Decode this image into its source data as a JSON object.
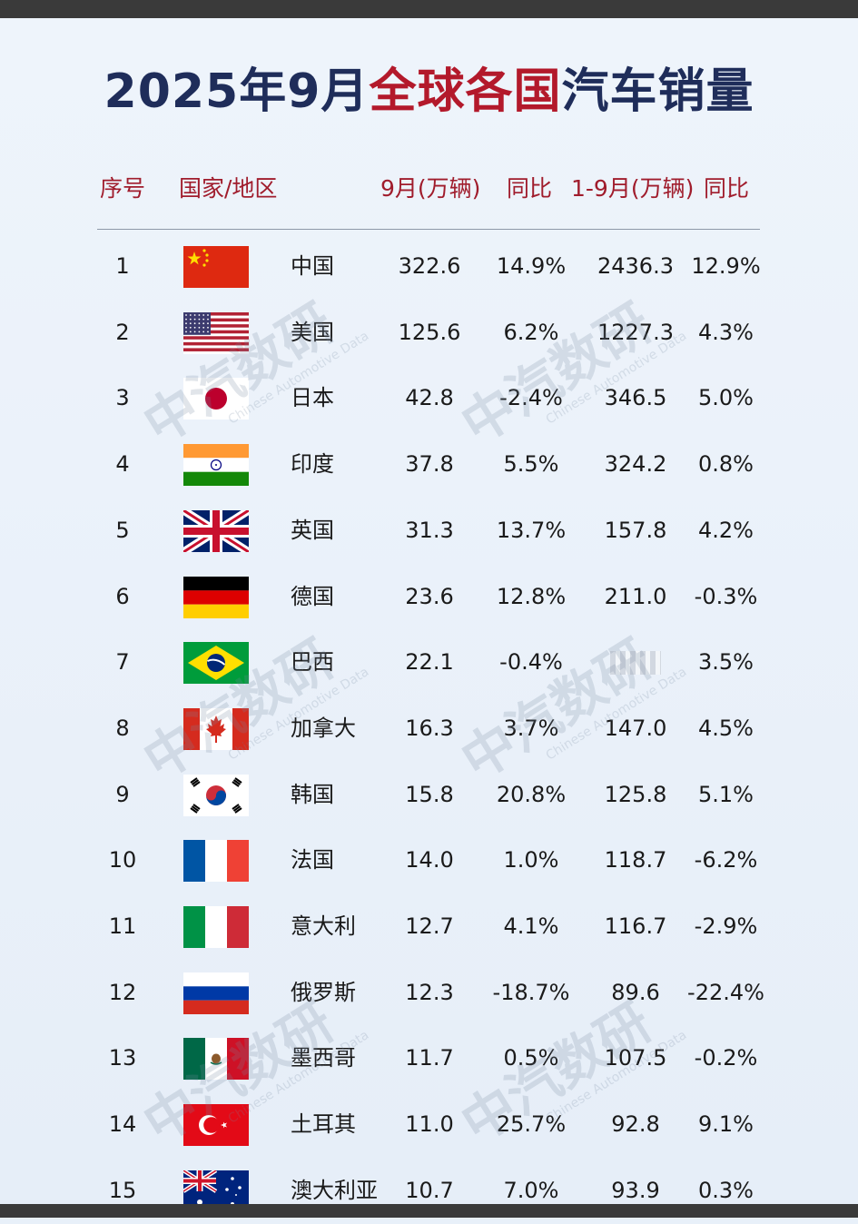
{
  "title": {
    "part1": "2025年9月",
    "part2": "全球各国",
    "part3": "汽车销量"
  },
  "headers": {
    "rank": "序号",
    "country": "国家/地区",
    "sep": "9月(万辆)",
    "yoy1": "同比",
    "ytd": "1-9月(万辆)",
    "yoy2": "同比"
  },
  "rows": [
    {
      "rank": "1",
      "name": "中国",
      "flag": "china-flag-icon",
      "sep": "322.6",
      "yoy1": "14.9%",
      "ytd": "2436.3",
      "yoy2": "12.9%"
    },
    {
      "rank": "2",
      "name": "美国",
      "flag": "usa-flag-icon",
      "sep": "125.6",
      "yoy1": "6.2%",
      "ytd": "1227.3",
      "yoy2": "4.3%"
    },
    {
      "rank": "3",
      "name": "日本",
      "flag": "japan-flag-icon",
      "sep": "42.8",
      "yoy1": "-2.4%",
      "ytd": "346.5",
      "yoy2": "5.0%"
    },
    {
      "rank": "4",
      "name": "印度",
      "flag": "india-flag-icon",
      "sep": "37.8",
      "yoy1": "5.5%",
      "ytd": "324.2",
      "yoy2": "0.8%"
    },
    {
      "rank": "5",
      "name": "英国",
      "flag": "uk-flag-icon",
      "sep": "31.3",
      "yoy1": "13.7%",
      "ytd": "157.8",
      "yoy2": "4.2%"
    },
    {
      "rank": "6",
      "name": "德国",
      "flag": "germany-flag-icon",
      "sep": "23.6",
      "yoy1": "12.8%",
      "ytd": "211.0",
      "yoy2": "-0.3%"
    },
    {
      "rank": "7",
      "name": "巴西",
      "flag": "brazil-flag-icon",
      "sep": "22.1",
      "yoy1": "-0.4%",
      "ytd": "",
      "yoy2": "3.5%"
    },
    {
      "rank": "8",
      "name": "加拿大",
      "flag": "canada-flag-icon",
      "sep": "16.3",
      "yoy1": "3.7%",
      "ytd": "147.0",
      "yoy2": "4.5%"
    },
    {
      "rank": "9",
      "name": "韩国",
      "flag": "korea-flag-icon",
      "sep": "15.8",
      "yoy1": "20.8%",
      "ytd": "125.8",
      "yoy2": "5.1%"
    },
    {
      "rank": "10",
      "name": "法国",
      "flag": "france-flag-icon",
      "sep": "14.0",
      "yoy1": "1.0%",
      "ytd": "118.7",
      "yoy2": "-6.2%"
    },
    {
      "rank": "11",
      "name": "意大利",
      "flag": "italy-flag-icon",
      "sep": "12.7",
      "yoy1": "4.1%",
      "ytd": "116.7",
      "yoy2": "-2.9%"
    },
    {
      "rank": "12",
      "name": "俄罗斯",
      "flag": "russia-flag-icon",
      "sep": "12.3",
      "yoy1": "-18.7%",
      "ytd": "89.6",
      "yoy2": "-22.4%"
    },
    {
      "rank": "13",
      "name": "墨西哥",
      "flag": "mexico-flag-icon",
      "sep": "11.7",
      "yoy1": "0.5%",
      "ytd": "107.5",
      "yoy2": "-0.2%"
    },
    {
      "rank": "14",
      "name": "土耳其",
      "flag": "turkey-flag-icon",
      "sep": "11.0",
      "yoy1": "25.7%",
      "ytd": "92.8",
      "yoy2": "9.1%"
    },
    {
      "rank": "15",
      "name": "澳大利亚",
      "flag": "australia-flag-icon",
      "sep": "10.7",
      "yoy1": "7.0%",
      "ytd": "93.9",
      "yoy2": "0.3%"
    }
  ],
  "watermark": {
    "main": "中汽数研",
    "sub": "Chinese Automotive Data"
  },
  "colors": {
    "title_dark": "#1f2d5a",
    "title_red": "#b3192b",
    "header_red": "#a01c2c"
  }
}
